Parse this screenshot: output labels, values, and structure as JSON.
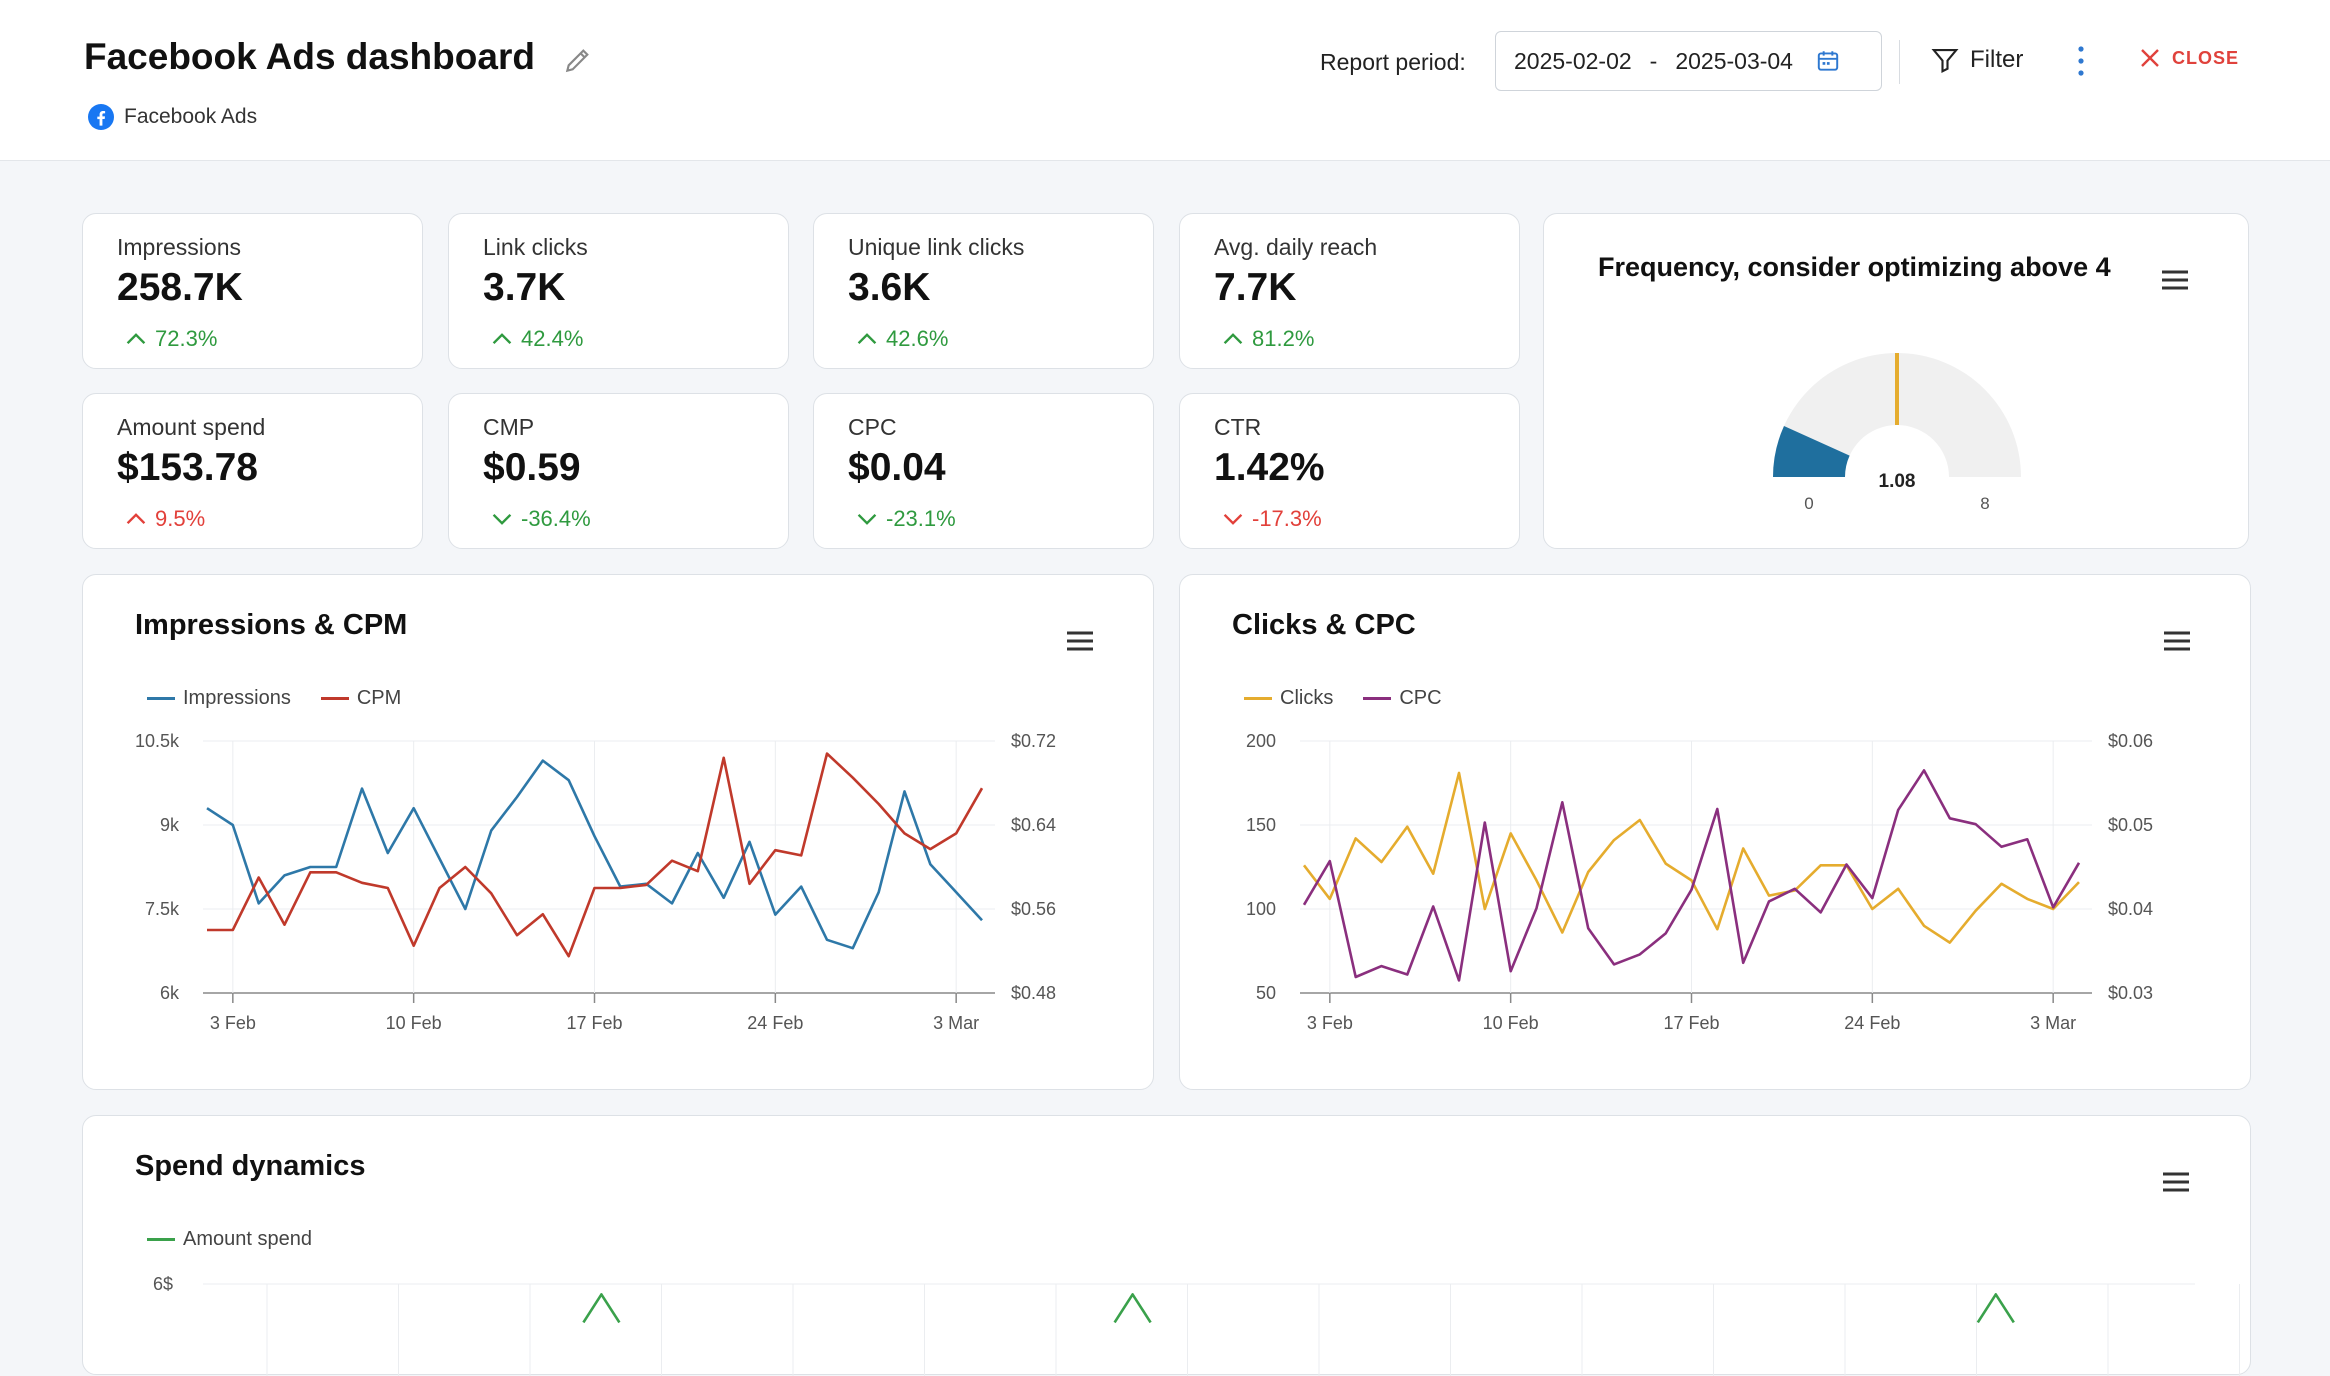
{
  "header": {
    "title": "Facebook Ads dashboard",
    "source": "Facebook Ads",
    "report_period_label": "Report period:",
    "date_start": "2025-02-02",
    "date_separator": "-",
    "date_end": "2025-03-04",
    "filter_label": "Filter",
    "close_label": "CLOSE"
  },
  "kpis": [
    {
      "label": "Impressions",
      "value": "258.7K",
      "delta": "72.3%",
      "direction": "up",
      "sentiment": "good"
    },
    {
      "label": "Link clicks",
      "value": "3.7K",
      "delta": "42.4%",
      "direction": "up",
      "sentiment": "good"
    },
    {
      "label": "Unique link clicks",
      "value": "3.6K",
      "delta": "42.6%",
      "direction": "up",
      "sentiment": "good"
    },
    {
      "label": "Avg. daily reach",
      "value": "7.7K",
      "delta": "81.2%",
      "direction": "up",
      "sentiment": "good"
    },
    {
      "label": "Amount spend",
      "value": "$153.78",
      "delta": "9.5%",
      "direction": "up",
      "sentiment": "bad"
    },
    {
      "label": "CMP",
      "value": "$0.59",
      "delta": "-36.4%",
      "direction": "down",
      "sentiment": "good"
    },
    {
      "label": "CPC",
      "value": "$0.04",
      "delta": "-23.1%",
      "direction": "down",
      "sentiment": "good"
    },
    {
      "label": "CTR",
      "value": "1.42%",
      "delta": "-17.3%",
      "direction": "down",
      "sentiment": "bad"
    }
  ],
  "colors": {
    "impressions": "#2e78a8",
    "cpm": "#c0392b",
    "clicks": "#e5ac2e",
    "cpc": "#8a2f7e",
    "spend": "#3aa14b",
    "gauge_fill": "#1f6f9e",
    "gauge_track": "#f0f0f0",
    "gauge_threshold": "#e5ac2e"
  },
  "gauge": {
    "title": "Frequency, consider optimizing above 4",
    "value": 1.08,
    "value_label": "1.08",
    "min": 0,
    "max": 8,
    "threshold": 4,
    "min_label": "0",
    "max_label": "8"
  },
  "charts": {
    "impressions_cpm": {
      "title": "Impressions & CPM"
    },
    "clicks_cpc": {
      "title": "Clicks & CPC"
    },
    "spend": {
      "title": "Spend dynamics"
    }
  },
  "chart_data": [
    {
      "type": "line",
      "title": "Impressions & CPM",
      "x": [
        "2025-02-02",
        "2025-02-03",
        "2025-02-04",
        "2025-02-05",
        "2025-02-06",
        "2025-02-07",
        "2025-02-08",
        "2025-02-09",
        "2025-02-10",
        "2025-02-11",
        "2025-02-12",
        "2025-02-13",
        "2025-02-14",
        "2025-02-15",
        "2025-02-16",
        "2025-02-17",
        "2025-02-18",
        "2025-02-19",
        "2025-02-20",
        "2025-02-21",
        "2025-02-22",
        "2025-02-23",
        "2025-02-24",
        "2025-02-25",
        "2025-02-26",
        "2025-02-27",
        "2025-02-28",
        "2025-03-01",
        "2025-03-02",
        "2025-03-03",
        "2025-03-04"
      ],
      "x_ticks": [
        "3 Feb",
        "10 Feb",
        "17 Feb",
        "24 Feb",
        "3 Mar"
      ],
      "x_tick_dates": [
        "2025-02-03",
        "2025-02-10",
        "2025-02-17",
        "2025-02-24",
        "2025-03-03"
      ],
      "series": [
        {
          "name": "Impressions",
          "axis": "left",
          "values": [
            9300,
            9000,
            7600,
            8100,
            8250,
            8250,
            9650,
            8500,
            9300,
            8400,
            7500,
            8900,
            9500,
            10150,
            9800,
            8800,
            7900,
            7950,
            7600,
            8500,
            7700,
            8700,
            7400,
            7900,
            6950,
            6800,
            7800,
            9600,
            8300,
            7800,
            7300
          ]
        },
        {
          "name": "CPM",
          "axis": "right",
          "values": [
            0.54,
            0.54,
            0.59,
            0.545,
            0.595,
            0.595,
            0.585,
            0.58,
            0.525,
            0.58,
            0.6,
            0.575,
            0.535,
            0.555,
            0.515,
            0.58,
            0.58,
            0.583,
            0.606,
            0.596,
            0.704,
            0.584,
            0.616,
            0.611,
            0.708,
            0.685,
            0.66,
            0.632,
            0.617,
            0.632,
            0.675
          ]
        }
      ],
      "y_left": {
        "ticks": [
          "10.5k",
          "9k",
          "7.5k",
          "6k"
        ],
        "range": [
          6000,
          10500
        ]
      },
      "y_right": {
        "ticks": [
          "$0.72",
          "$0.64",
          "$0.56",
          "$0.48"
        ],
        "range": [
          0.48,
          0.72
        ]
      }
    },
    {
      "type": "line",
      "title": "Clicks & CPC",
      "x": [
        "2025-02-02",
        "2025-02-03",
        "2025-02-04",
        "2025-02-05",
        "2025-02-06",
        "2025-02-07",
        "2025-02-08",
        "2025-02-09",
        "2025-02-10",
        "2025-02-11",
        "2025-02-12",
        "2025-02-13",
        "2025-02-14",
        "2025-02-15",
        "2025-02-16",
        "2025-02-17",
        "2025-02-18",
        "2025-02-19",
        "2025-02-20",
        "2025-02-21",
        "2025-02-22",
        "2025-02-23",
        "2025-02-24",
        "2025-02-25",
        "2025-02-26",
        "2025-02-27",
        "2025-02-28",
        "2025-03-01",
        "2025-03-02",
        "2025-03-03",
        "2025-03-04"
      ],
      "x_ticks": [
        "3 Feb",
        "10 Feb",
        "17 Feb",
        "24 Feb",
        "3 Mar"
      ],
      "x_tick_dates": [
        "2025-02-03",
        "2025-02-10",
        "2025-02-17",
        "2025-02-24",
        "2025-03-03"
      ],
      "series": [
        {
          "name": "Clicks",
          "axis": "left",
          "values": [
            126,
            106,
            142,
            128,
            149,
            121,
            181,
            100,
            145,
            117,
            86,
            122,
            141,
            153,
            127,
            117,
            88,
            136,
            108,
            111,
            126,
            126,
            100,
            112,
            90,
            80,
            99,
            115,
            106,
            100,
            116
          ]
        },
        {
          "name": "CPC",
          "axis": "right",
          "values": [
            0.0405,
            0.0457,
            0.0319,
            0.0332,
            0.0322,
            0.0403,
            0.0315,
            0.0503,
            0.0326,
            0.0401,
            0.0527,
            0.0377,
            0.0334,
            0.0346,
            0.0371,
            0.0423,
            0.0519,
            0.0336,
            0.0409,
            0.0424,
            0.0396,
            0.0453,
            0.0413,
            0.0518,
            0.0565,
            0.0508,
            0.0501,
            0.0474,
            0.0483,
            0.0402,
            0.0455
          ]
        }
      ],
      "y_left": {
        "ticks": [
          "200",
          "150",
          "100",
          "50"
        ],
        "range": [
          50,
          200
        ]
      },
      "y_right": {
        "ticks": [
          "$0.06",
          "$0.05",
          "$0.04",
          "$0.03"
        ],
        "range": [
          0.03,
          0.06
        ]
      }
    },
    {
      "type": "line",
      "title": "Spend dynamics",
      "series": [
        {
          "name": "Amount spend",
          "values": [
            5.8,
            5.8,
            5.8
          ]
        }
      ],
      "peak_dates": [
        "2025-02-08",
        "2025-02-16",
        "2025-03-01"
      ],
      "x_range": [
        "2025-02-02",
        "2025-03-04"
      ],
      "y_top_tick": "6$",
      "y_max": 6
    }
  ]
}
